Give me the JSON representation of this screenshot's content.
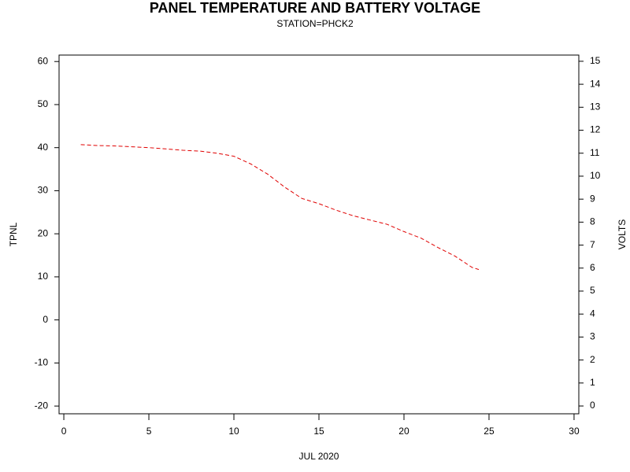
{
  "chart_data": {
    "type": "line",
    "title": "PANEL TEMPERATURE AND BATTERY VOLTAGE",
    "subtitle": "STATION=PHCK2",
    "x_label": "JUL 2020",
    "y_label": "TPNL",
    "y2_label": "VOLTS",
    "x": [
      1,
      2,
      3,
      4,
      5,
      6,
      7,
      8,
      9,
      10,
      11,
      12,
      13,
      14,
      15,
      16,
      17,
      18,
      19,
      20,
      21,
      22,
      23,
      24,
      24.4
    ],
    "values": [
      40.7,
      40.5,
      40.4,
      40.2,
      40.0,
      39.7,
      39.4,
      39.2,
      38.7,
      38.0,
      36.2,
      33.8,
      30.8,
      28.2,
      27.0,
      25.5,
      24.2,
      23.2,
      22.2,
      20.5,
      19.0,
      16.8,
      14.8,
      12.2,
      11.7
    ],
    "color": "#e00000",
    "dashed": true,
    "xlim": [
      -0.28,
      30.28
    ],
    "xticks": [
      0,
      5,
      10,
      15,
      20,
      25,
      30
    ],
    "ylim": [
      -21.8,
      61.5
    ],
    "yticks": [
      -20,
      -10,
      0,
      10,
      20,
      30,
      40,
      50,
      60
    ],
    "y2lim": [
      -0.34,
      15.27
    ],
    "y2ticks": [
      0,
      1,
      2,
      3,
      4,
      5,
      6,
      7,
      8,
      9,
      10,
      11,
      12,
      13,
      14,
      15
    ]
  }
}
